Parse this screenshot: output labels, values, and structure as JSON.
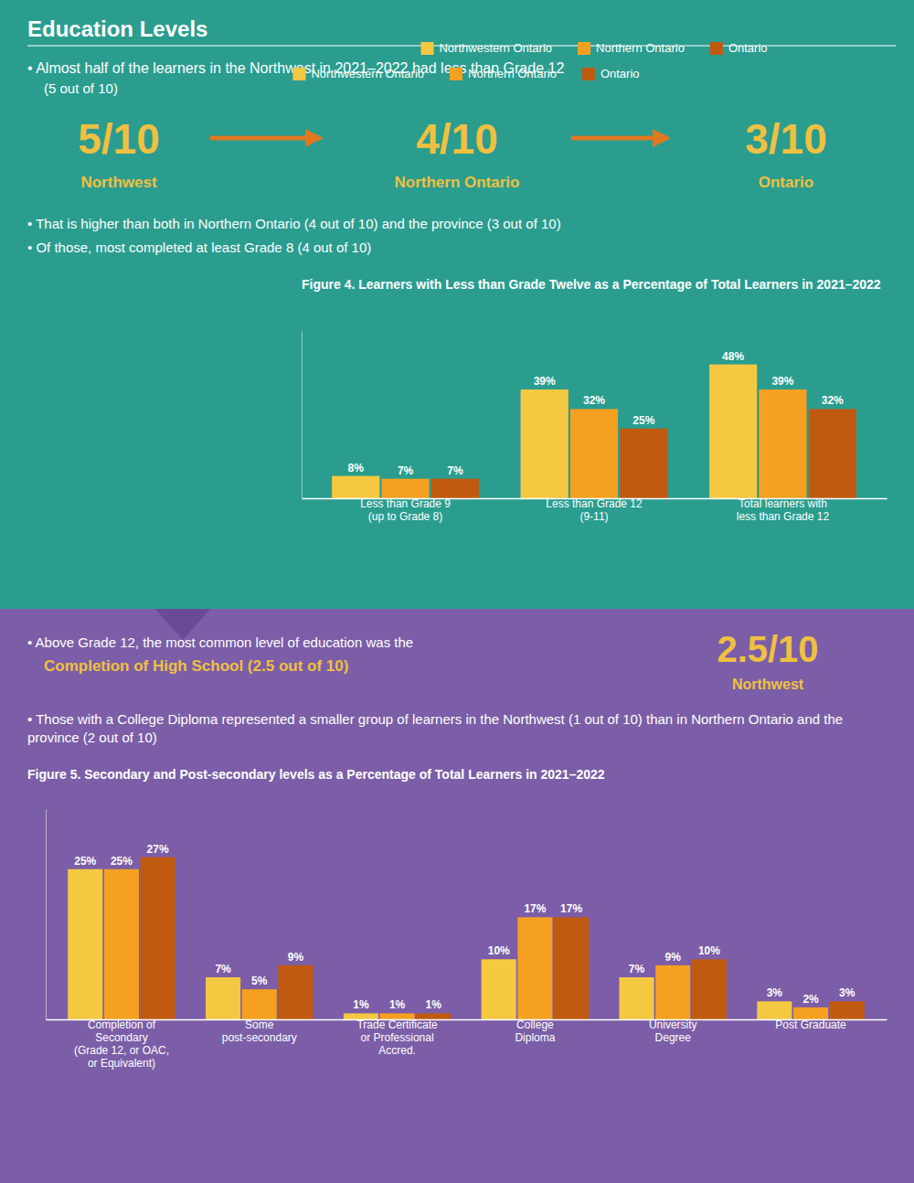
{
  "chart_data": [
    {
      "type": "bar",
      "title": "Figure 4. Learners with Less than Grade Twelve as a Percentage of Total Learners in 2021–2022",
      "annotations": [
        "Education Levels",
        "• Almost half of the learners in the Northwest in 2021–2022 had less than Grade 12",
        "(5 out of 10)",
        "5/10",
        "Northwest",
        "4/10",
        "Northern Ontario",
        "3/10",
        "Ontario",
        "• That is higher than both in Northern Ontario (4 out of 10) and the province (3 out of 10)",
        "• Of those, most completed at least Grade 8 (4 out of 10)"
      ],
      "categories": [
        "Less than Grade 9\n(up to Grade 8)",
        "Less than Grade 12\n(9-11)",
        "Total learners with\nless than Grade 12"
      ],
      "series": [
        {
          "name": "Northwestern Ontario",
          "color": "#f5c842",
          "values": [
            8,
            39,
            48
          ],
          "value_labels": [
            "8%",
            "39%",
            "48%"
          ]
        },
        {
          "name": "Northern Ontario",
          "color": "#f5a020",
          "values": [
            7,
            32,
            39
          ],
          "value_labels": [
            "7%",
            "32%",
            "39%"
          ]
        },
        {
          "name": "Ontario",
          "color": "#c05a10",
          "values": [
            7,
            25,
            32
          ],
          "value_labels": [
            "7%",
            "25%",
            "32%"
          ]
        }
      ],
      "ylim": [
        0,
        60
      ],
      "tick_labels": "x",
      "data_labels": true,
      "legend": "bottom",
      "grid": false
    },
    {
      "type": "bar",
      "title": "Figure 5. Secondary and Post-secondary levels as a Percentage of Total Learners in 2021–2022",
      "annotations": [
        "• Above Grade 12, the most common level of education was the",
        "Completion of High School (2.5 out of 10)",
        "2.5/10",
        "Northwest",
        "• Those with a College Diploma represented a smaller group of learners in the Northwest (1 out of 10) than in Northern Ontario and the province (2 out of 10)"
      ],
      "categories": [
        "Completion of\nSecondary\n(Grade 12, or OAC,\nor Equivalent)",
        "Some\npost-secondary",
        "Trade Certificate\nor Professional\nAccred.",
        "College\nDiploma",
        "University\nDegree",
        "Post Graduate"
      ],
      "series": [
        {
          "name": "Northwestern Ontario",
          "color": "#f5c842",
          "values": [
            25,
            7,
            1,
            10,
            7,
            3
          ],
          "value_labels": [
            "25%",
            "7%",
            "1%",
            "10%",
            "7%",
            "3%"
          ]
        },
        {
          "name": "Northern Ontario",
          "color": "#f5a020",
          "values": [
            25,
            5,
            1,
            17,
            9,
            2
          ],
          "value_labels": [
            "25%",
            "5%",
            "1%",
            "17%",
            "9%",
            "2%"
          ]
        },
        {
          "name": "Ontario",
          "color": "#c05a10",
          "values": [
            27,
            9,
            1,
            17,
            10,
            3
          ],
          "value_labels": [
            "27%",
            "9%",
            "1%",
            "17%",
            "10%",
            "3%"
          ]
        }
      ],
      "ylim": [
        0,
        35
      ],
      "tick_labels": "x",
      "data_labels": true,
      "legend": "bottom",
      "grid": false
    }
  ]
}
